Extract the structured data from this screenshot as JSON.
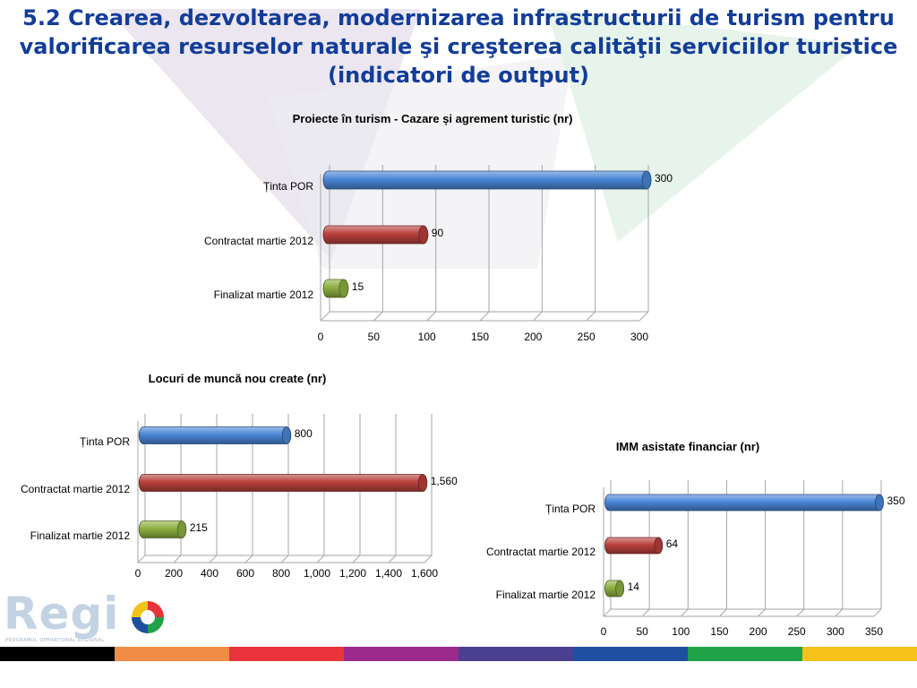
{
  "slide": {
    "title_lines": [
      "5.2 Crearea, dezvoltarea, modernizarea infrastructurii de turism pentru",
      "valorificarea resurselor naturale şi creşterea calităţii serviciilor turistice",
      "(indicatori de output)"
    ]
  },
  "logo": {
    "text": "Regi",
    "subtitle": "PROGRAMUL OPERAȚIONAL REGIONAL"
  },
  "colors": {
    "title": "#123d99",
    "series": [
      "#4a86d6",
      "#b9403c",
      "#8db03f"
    ],
    "stripe": [
      "#000000",
      "#f08c45",
      "#e8343a",
      "#9b2a8a",
      "#4b3f8f",
      "#1f4fa0",
      "#1fa24a",
      "#f7c21a"
    ]
  },
  "chart_data": [
    {
      "type": "bar",
      "orientation": "horizontal",
      "title": "Proiecte în turism - Cazare și agrement turistic (nr)",
      "categories": [
        "Ținta POR",
        "Contractat martie 2012",
        "Finalizat martie 2012"
      ],
      "values": [
        300,
        90,
        15
      ],
      "value_labels": [
        "300",
        "90",
        "15"
      ],
      "xlim": [
        0,
        300
      ],
      "ticks": [
        "0",
        "50",
        "100",
        "150",
        "200",
        "250",
        "300"
      ],
      "grid": true
    },
    {
      "type": "bar",
      "orientation": "horizontal",
      "title": "Locuri de  muncă nou create (nr)",
      "categories": [
        "Ținta POR",
        "Contractat martie 2012",
        "Finalizat martie 2012"
      ],
      "values": [
        800,
        1560,
        215
      ],
      "value_labels": [
        "800",
        "1,560",
        "215"
      ],
      "xlim": [
        0,
        1600
      ],
      "ticks": [
        "0",
        "200",
        "400",
        "600",
        "800",
        "1,000",
        "1,200",
        "1,400",
        "1,600"
      ],
      "grid": true
    },
    {
      "type": "bar",
      "orientation": "horizontal",
      "title": "IMM asistate financiar (nr)",
      "categories": [
        "Ținta POR",
        "Contractat martie 2012",
        "Finalizat martie 2012"
      ],
      "values": [
        350,
        64,
        14
      ],
      "value_labels": [
        "350",
        "64",
        "14"
      ],
      "xlim": [
        0,
        350
      ],
      "ticks": [
        "0",
        "50",
        "100",
        "150",
        "200",
        "250",
        "300",
        "350"
      ],
      "grid": true
    }
  ]
}
